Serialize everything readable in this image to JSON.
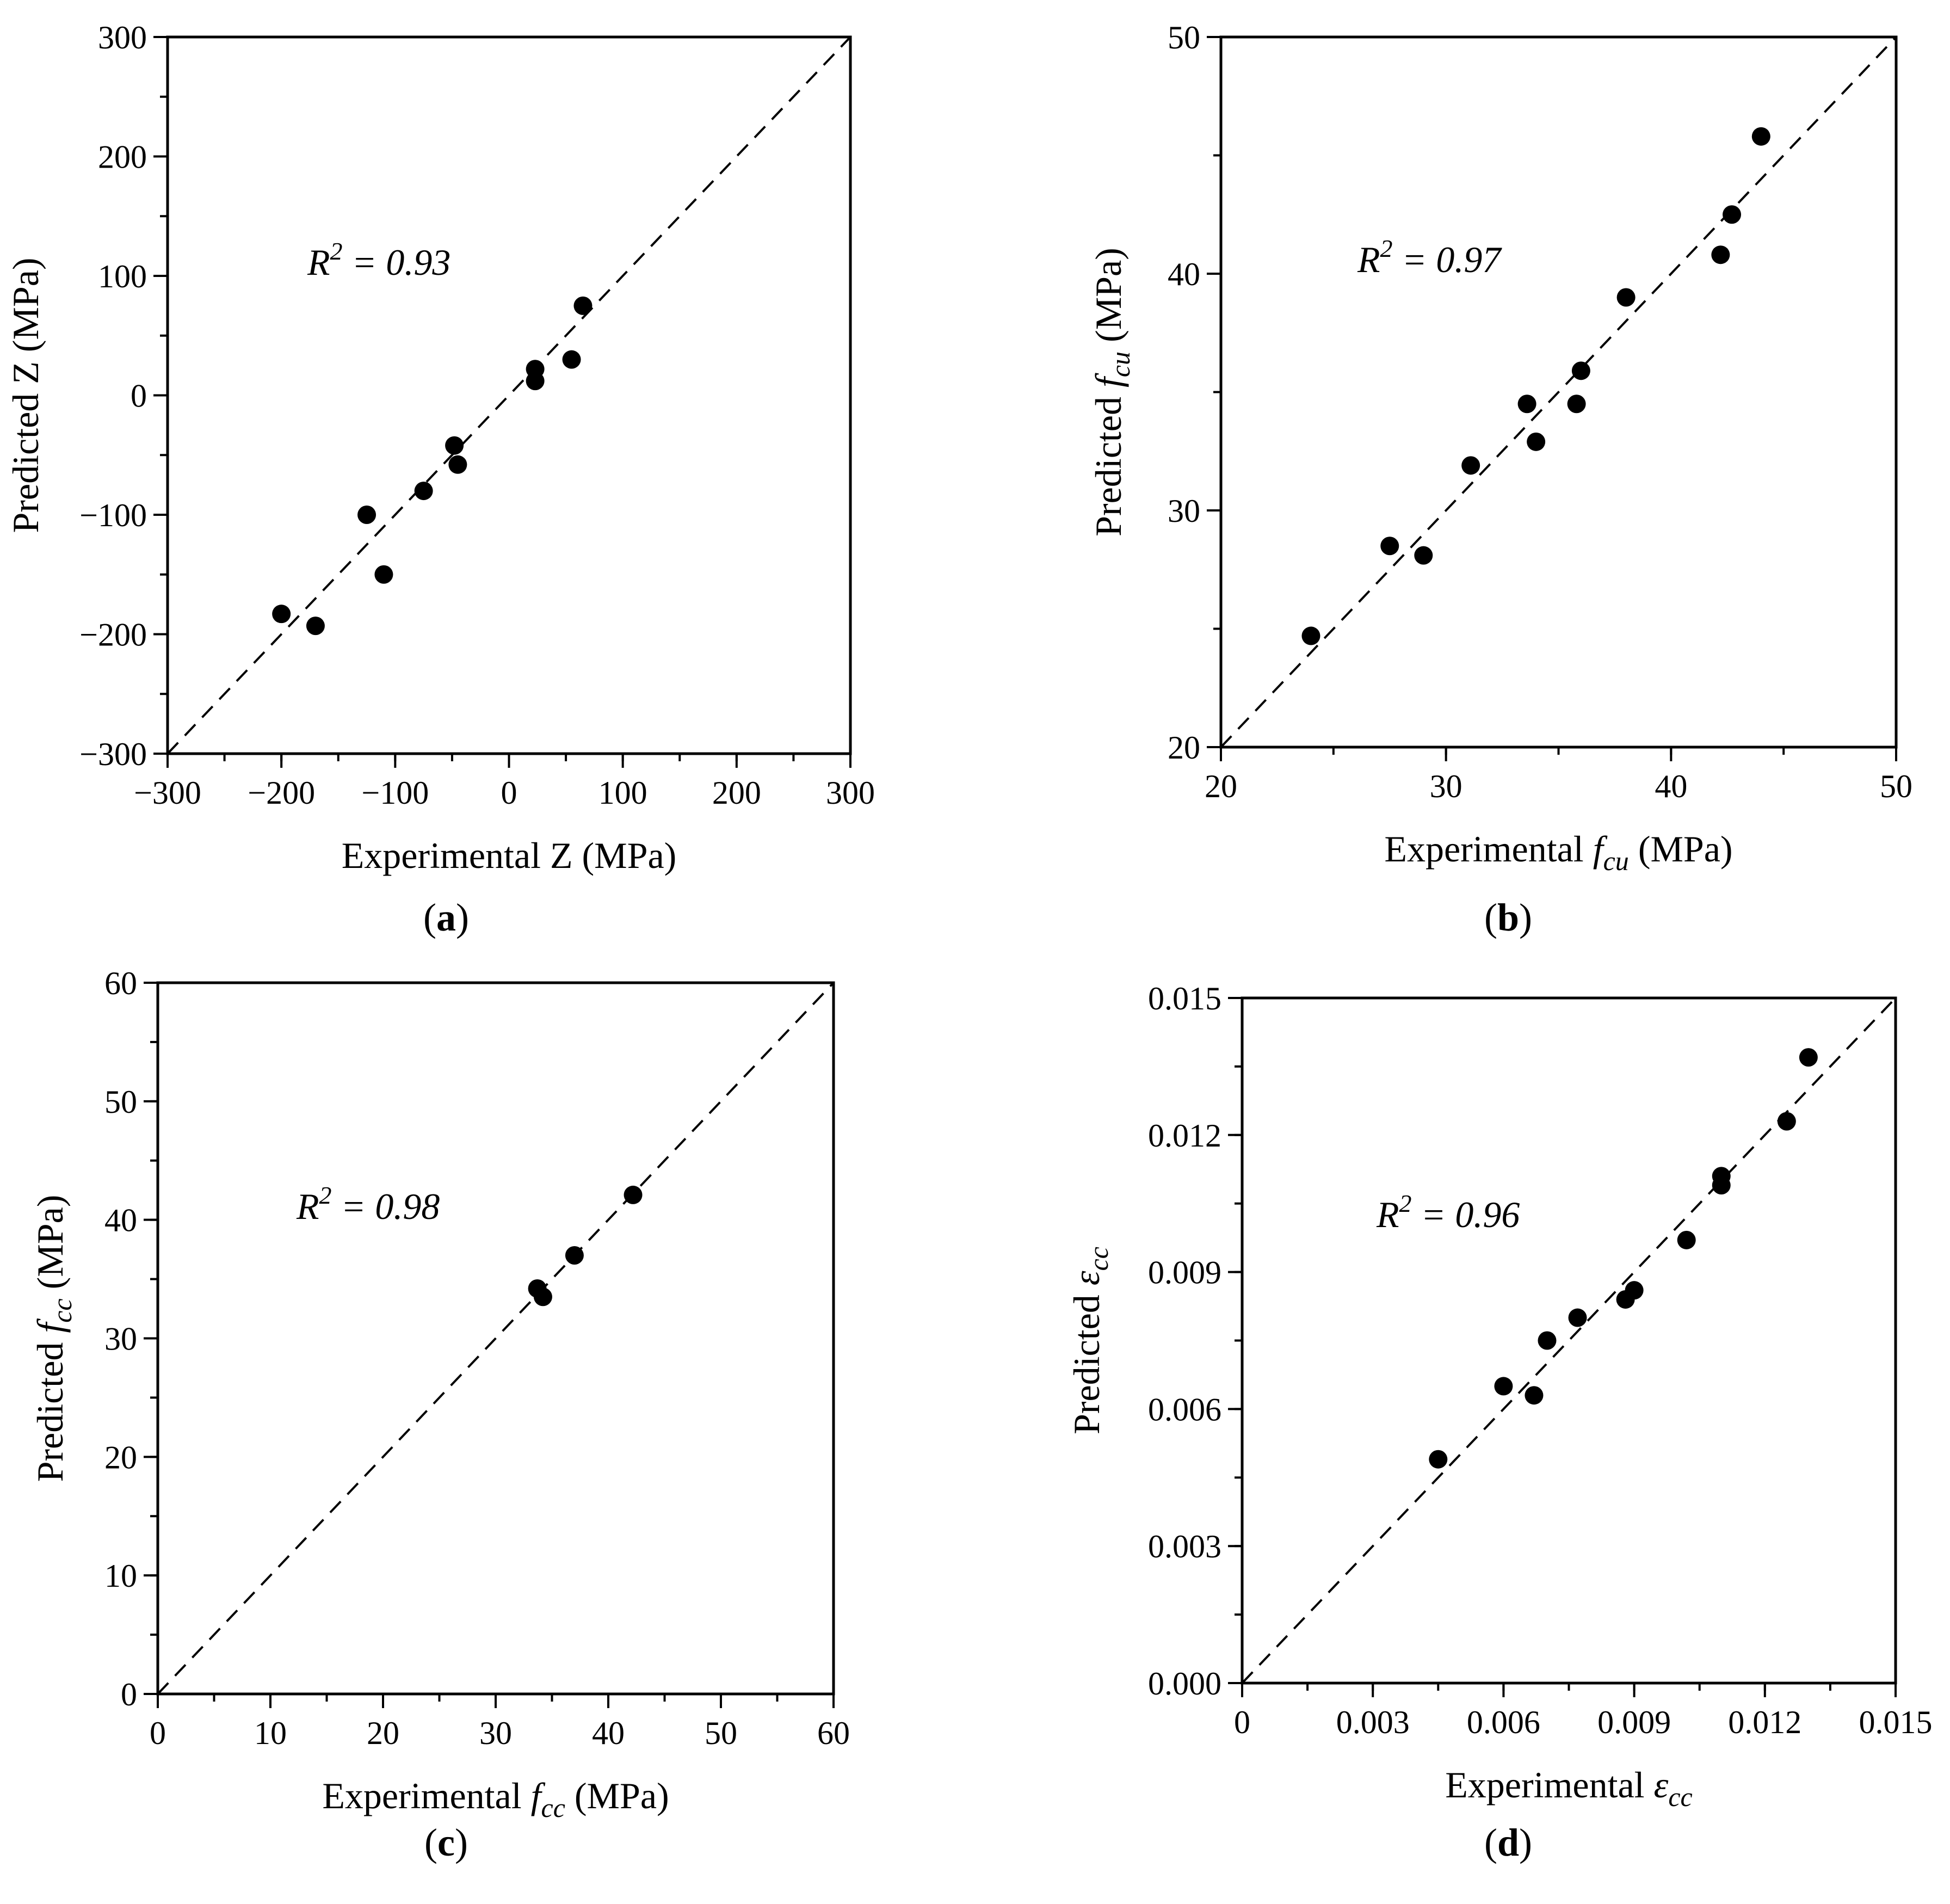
{
  "chart_data": [
    {
      "type": "scatter",
      "panel_label": "a",
      "r2_label": "R",
      "r2_sup": "2",
      "r2_value": " = 0.93",
      "xlabel": {
        "pre": "Experimental Z (MPa)",
        "sym": "",
        "sub": "",
        "post": ""
      },
      "ylabel": {
        "pre": "Predicted Z (MPa)",
        "sym": "",
        "sub": "",
        "post": ""
      },
      "xlim": [
        -300,
        300
      ],
      "ylim": [
        -300,
        300
      ],
      "xticks": [
        -300,
        -200,
        -100,
        0,
        100,
        200,
        300
      ],
      "yticks": [
        -300,
        -200,
        -100,
        0,
        100,
        200,
        300
      ],
      "xtick_labels": [
        "−300",
        "−200",
        "−100",
        "0",
        "100",
        "200",
        "300"
      ],
      "ytick_labels": [
        "−300",
        "−200",
        "−100",
        "0",
        "100",
        "200",
        "300"
      ],
      "minor_step": 50,
      "reference_line": "y = x",
      "points": [
        {
          "x": -200,
          "y": -183
        },
        {
          "x": -170,
          "y": -193
        },
        {
          "x": -125,
          "y": -100
        },
        {
          "x": -110,
          "y": -150
        },
        {
          "x": -75,
          "y": -80
        },
        {
          "x": -48,
          "y": -42
        },
        {
          "x": -45,
          "y": -58
        },
        {
          "x": 23,
          "y": 22
        },
        {
          "x": 23,
          "y": 12
        },
        {
          "x": 55,
          "y": 30
        },
        {
          "x": 65,
          "y": 75
        }
      ]
    },
    {
      "type": "scatter",
      "panel_label": "b",
      "r2_label": "R",
      "r2_sup": "2",
      "r2_value": " = 0.97",
      "xlabel": {
        "pre": "Experimental ",
        "sym": "f",
        "sub": "cu",
        "post": " (MPa)"
      },
      "ylabel": {
        "pre": "Predicted ",
        "sym": "f",
        "sub": "cu",
        "post": " (MPa)"
      },
      "xlim": [
        20,
        50
      ],
      "ylim": [
        20,
        50
      ],
      "xticks": [
        20,
        30,
        40,
        50
      ],
      "yticks": [
        20,
        30,
        40,
        50
      ],
      "xtick_labels": [
        "20",
        "30",
        "40",
        "50"
      ],
      "ytick_labels": [
        "20",
        "30",
        "40",
        "50"
      ],
      "minor_step": 5,
      "reference_line": "y = x",
      "points": [
        {
          "x": 24.0,
          "y": 24.7
        },
        {
          "x": 27.5,
          "y": 28.5
        },
        {
          "x": 29.0,
          "y": 28.1
        },
        {
          "x": 31.1,
          "y": 31.9
        },
        {
          "x": 33.6,
          "y": 34.5
        },
        {
          "x": 34.0,
          "y": 32.9
        },
        {
          "x": 35.8,
          "y": 34.5
        },
        {
          "x": 36.0,
          "y": 35.9
        },
        {
          "x": 38.0,
          "y": 39.0
        },
        {
          "x": 42.2,
          "y": 40.8
        },
        {
          "x": 42.7,
          "y": 42.5
        },
        {
          "x": 44.0,
          "y": 45.8
        }
      ]
    },
    {
      "type": "scatter",
      "panel_label": "c",
      "r2_label": "R",
      "r2_sup": "2",
      "r2_value": " = 0.98",
      "xlabel": {
        "pre": "Experimental ",
        "sym": "f",
        "sub": "cc",
        "post": " (MPa)"
      },
      "ylabel": {
        "pre": "Predicted ",
        "sym": "f",
        "sub": "cc",
        "post": " (MPa)"
      },
      "xlim": [
        0,
        60
      ],
      "ylim": [
        0,
        60
      ],
      "xticks": [
        0,
        10,
        20,
        30,
        40,
        50,
        60
      ],
      "yticks": [
        0,
        10,
        20,
        30,
        40,
        50,
        60
      ],
      "xtick_labels": [
        "0",
        "10",
        "20",
        "30",
        "40",
        "50",
        "60"
      ],
      "ytick_labels": [
        "0",
        "10",
        "20",
        "30",
        "40",
        "50",
        "60"
      ],
      "minor_step": 5,
      "reference_line": "y = x",
      "points": [
        {
          "x": 33.7,
          "y": 34.2
        },
        {
          "x": 34.2,
          "y": 33.5
        },
        {
          "x": 37.0,
          "y": 37.0
        },
        {
          "x": 42.2,
          "y": 42.1
        }
      ]
    },
    {
      "type": "scatter",
      "panel_label": "d",
      "r2_label": "R",
      "r2_sup": "2",
      "r2_value": " = 0.96",
      "xlabel": {
        "pre": "Experimental ",
        "sym": "ε",
        "sub": "cc",
        "post": ""
      },
      "ylabel": {
        "pre": "Predicted ",
        "sym": "ε",
        "sub": "cc",
        "post": ""
      },
      "xlim": [
        0,
        0.015
      ],
      "ylim": [
        0,
        0.015
      ],
      "xticks": [
        0,
        0.003,
        0.006,
        0.009,
        0.012,
        0.015
      ],
      "yticks": [
        0,
        0.003,
        0.006,
        0.009,
        0.012,
        0.015
      ],
      "xtick_labels": [
        "0",
        "0.003",
        "0.006",
        "0.009",
        "0.012",
        "0.015"
      ],
      "ytick_labels": [
        "0.000",
        "0.003",
        "0.006",
        "0.009",
        "0.012",
        "0.015"
      ],
      "minor_step": 0.0015,
      "reference_line": "y = x",
      "points": [
        {
          "x": 0.0045,
          "y": 0.0049
        },
        {
          "x": 0.006,
          "y": 0.0065
        },
        {
          "x": 0.0067,
          "y": 0.0063
        },
        {
          "x": 0.007,
          "y": 0.0075
        },
        {
          "x": 0.0077,
          "y": 0.008
        },
        {
          "x": 0.0088,
          "y": 0.0084
        },
        {
          "x": 0.009,
          "y": 0.0086
        },
        {
          "x": 0.0102,
          "y": 0.0097
        },
        {
          "x": 0.011,
          "y": 0.0109
        },
        {
          "x": 0.011,
          "y": 0.0111
        },
        {
          "x": 0.0125,
          "y": 0.0123
        },
        {
          "x": 0.013,
          "y": 0.0137
        }
      ]
    }
  ]
}
